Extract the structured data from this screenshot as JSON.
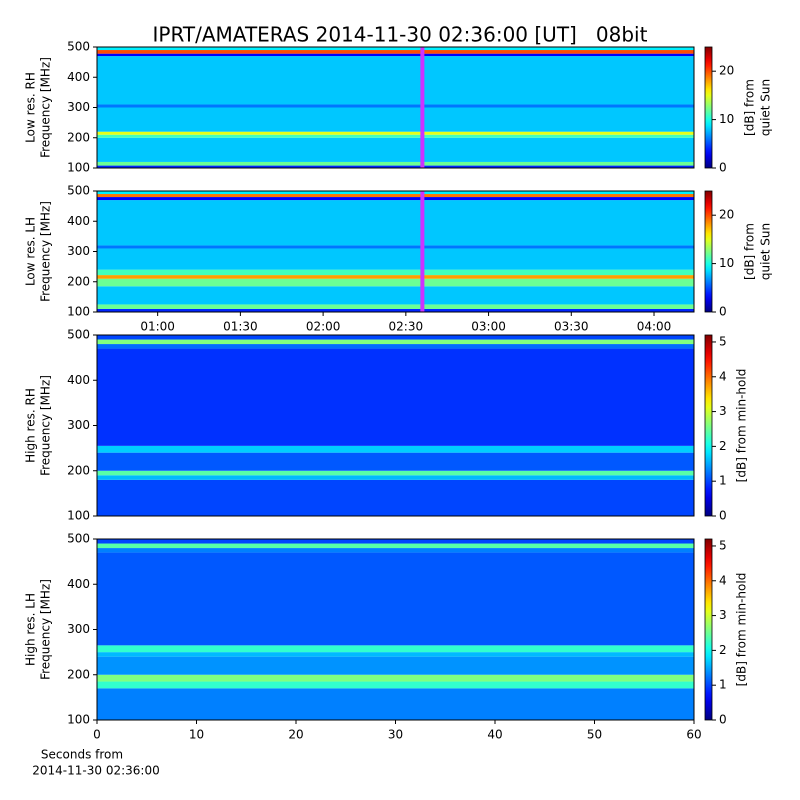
{
  "chart_data": [
    {
      "type": "heatmap",
      "title": "IPRT/AMATERAS 2014-11-30 02:36:00 [UT]   08bit",
      "ylabel": [
        "Low res. RH",
        "Frequency [MHz]"
      ],
      "xlim": [
        38,
        254.5
      ],
      "ylim": [
        100,
        500
      ],
      "yticks": [
        100,
        200,
        300,
        400,
        500
      ],
      "y_edges": [
        100,
        108,
        120,
        200,
        210,
        220,
        300,
        310,
        470,
        478,
        490,
        500
      ],
      "values": [
        4,
        12,
        8,
        11,
        15,
        8,
        6,
        8,
        3,
        20,
        9
      ],
      "colormap": "jet",
      "clim": [
        0,
        25
      ],
      "cticks": [
        0,
        10,
        20
      ],
      "colorbar_label": [
        "[dB] from",
        "quiet Sun"
      ],
      "vline": 156,
      "vline_color": "#cc33ff"
    },
    {
      "type": "heatmap",
      "ylabel": [
        "Low res. LH",
        "Frequency [MHz]"
      ],
      "xlim": [
        38,
        254.5
      ],
      "ylim": [
        100,
        500
      ],
      "yticks": [
        100,
        200,
        300,
        400,
        500
      ],
      "xticks": [
        {
          "value": 60,
          "label": "01:00"
        },
        {
          "value": 90,
          "label": "01:30"
        },
        {
          "value": 120,
          "label": "02:00"
        },
        {
          "value": 150,
          "label": "02:30"
        },
        {
          "value": 180,
          "label": "03:00"
        },
        {
          "value": 210,
          "label": "03:30"
        },
        {
          "value": 240,
          "label": "04:00"
        }
      ],
      "y_edges": [
        100,
        110,
        125,
        185,
        210,
        222,
        240,
        310,
        320,
        470,
        480,
        490,
        500
      ],
      "values": [
        4,
        12,
        8,
        12,
        18,
        11,
        8,
        6,
        8,
        3,
        19,
        9
      ],
      "colormap": "jet",
      "clim": [
        0,
        25
      ],
      "cticks": [
        0,
        10,
        20
      ],
      "colorbar_label": [
        "[dB] from",
        "quiet Sun"
      ],
      "vline": 156,
      "vline_color": "#cc33ff"
    },
    {
      "type": "heatmap",
      "ylabel": [
        "High res. RH",
        "Frequency [MHz]"
      ],
      "xlim": [
        0,
        60
      ],
      "ylim": [
        100,
        500
      ],
      "yticks": [
        100,
        200,
        300,
        400,
        500
      ],
      "y_edges": [
        100,
        180,
        190,
        200,
        240,
        255,
        470,
        480,
        490,
        500
      ],
      "values": [
        1,
        1.6,
        2.4,
        1.1,
        1.7,
        0.9,
        1.2,
        2.6,
        1
      ],
      "colormap": "jet",
      "clim": [
        0,
        5.2
      ],
      "cticks": [
        0,
        1,
        2,
        3,
        4,
        5
      ],
      "colorbar_label": [
        "[dB] from min-hold"
      ]
    },
    {
      "type": "heatmap",
      "ylabel": [
        "High res. LH",
        "Frequency [MHz]"
      ],
      "xlim": [
        0,
        60
      ],
      "ylim": [
        100,
        500
      ],
      "yticks": [
        100,
        200,
        300,
        400,
        500
      ],
      "xticks": [
        0,
        10,
        20,
        30,
        40,
        50,
        60
      ],
      "xlabel": [
        "Seconds from",
        "2014-11-30 02:36:00"
      ],
      "y_edges": [
        100,
        170,
        185,
        200,
        240,
        250,
        265,
        470,
        480,
        490,
        500
      ],
      "values": [
        1.3,
        2.2,
        2.6,
        1.4,
        1.6,
        2.2,
        1.1,
        1.3,
        2.4,
        1
      ],
      "colormap": "jet",
      "clim": [
        0,
        5.2
      ],
      "cticks": [
        0,
        1,
        2,
        3,
        4,
        5
      ],
      "colorbar_label": [
        "[dB] from min-hold"
      ]
    }
  ]
}
